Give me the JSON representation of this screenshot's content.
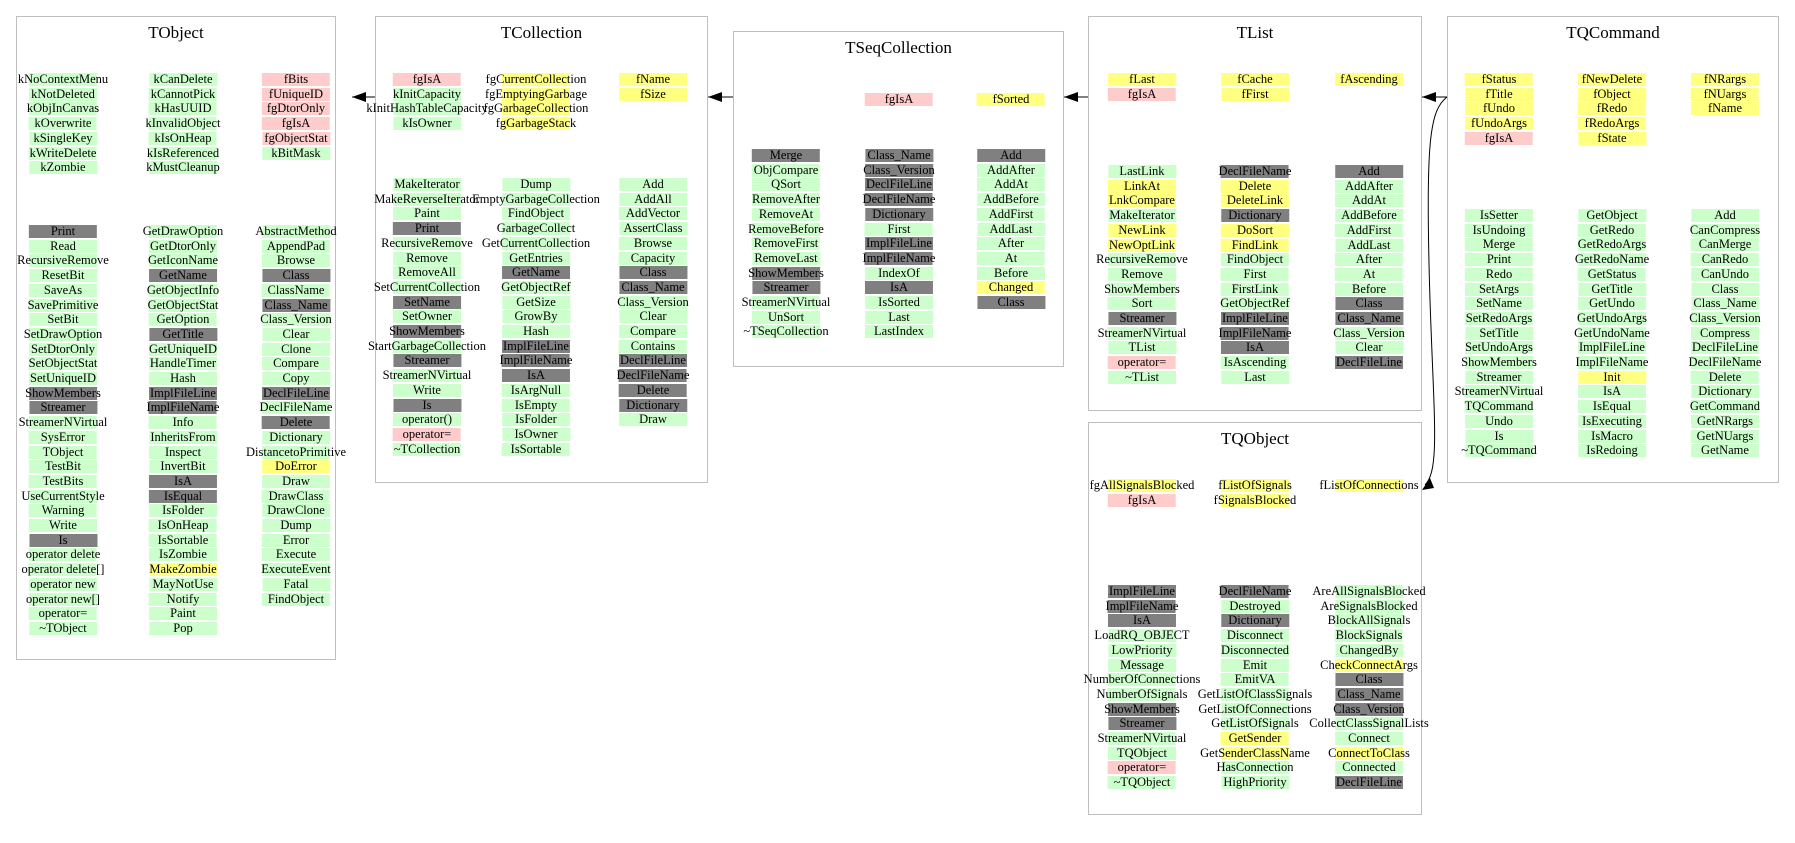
{
  "classes": [
    {
      "id": "tobject",
      "title": "TObject",
      "members": [
        [
          "kNoContextMenu",
          "kNotDeleted",
          "kObjInCanvas",
          "kOverwrite",
          "kSingleKey",
          "kWriteDelete",
          "kZombie"
        ],
        [
          "kCanDelete",
          "kCannotPick",
          "kHasUUID",
          "kInvalidObject",
          "kIsOnHeap",
          "kIsReferenced",
          "kMustCleanup"
        ],
        [
          "fBits",
          "fUniqueID",
          "fgDtorOnly",
          "fgIsA",
          "fgObjectStat",
          "kBitMask"
        ]
      ],
      "methods": [
        [
          "Print",
          "Read",
          "RecursiveRemove",
          "ResetBit",
          "SaveAs",
          "SavePrimitive",
          "SetBit",
          "SetDrawOption",
          "SetDtorOnly",
          "SetObjectStat",
          "SetUniqueID",
          "ShowMembers",
          "Streamer",
          "StreamerNVirtual",
          "SysError",
          "TObject",
          "TestBit",
          "TestBits",
          "UseCurrentStyle",
          "Warning",
          "Write",
          "Is",
          "operator delete",
          "operator delete[]",
          "operator new",
          "operator new[]",
          "operator=",
          "~TObject"
        ],
        [
          "GetDrawOption",
          "GetDtorOnly",
          "GetIconName",
          "GetName",
          "GetObjectInfo",
          "GetObjectStat",
          "GetOption",
          "GetTitle",
          "GetUniqueID",
          "HandleTimer",
          "Hash",
          "ImplFileLine",
          "ImplFileName",
          "Info",
          "InheritsFrom",
          "Inspect",
          "InvertBit",
          "IsA",
          "IsEqual",
          "IsFolder",
          "IsOnHeap",
          "IsSortable",
          "IsZombie",
          "MakeZombie",
          "MayNotUse",
          "Notify",
          "Paint",
          "Pop"
        ],
        [
          "AbstractMethod",
          "AppendPad",
          "Browse",
          "Class",
          "ClassName",
          "Class_Name",
          "Class_Version",
          "Clear",
          "Clone",
          "Compare",
          "Copy",
          "DeclFileLine",
          "DeclFileName",
          "Delete",
          "Dictionary",
          "DistancetoPrimitive",
          "DoError",
          "Draw",
          "DrawClass",
          "DrawClone",
          "Dump",
          "Error",
          "Execute",
          "ExecuteEvent",
          "Fatal",
          "FindObject"
        ]
      ]
    },
    {
      "id": "tcollection",
      "title": "TCollection",
      "members": [
        [
          "fgIsA",
          "kInitCapacity",
          "kInitHashTableCapacity",
          "kIsOwner"
        ],
        [
          "fgCurrentCollection",
          "fgEmptyingGarbage",
          "fgGarbageCollection",
          "fgGarbageStack"
        ],
        [
          "fName",
          "fSize"
        ]
      ],
      "methods": [
        [
          "MakeIterator",
          "MakeReverseIterator",
          "Paint",
          "Print",
          "RecursiveRemove",
          "Remove",
          "RemoveAll",
          "SetCurrentCollection",
          "SetName",
          "SetOwner",
          "ShowMembers",
          "StartGarbageCollection",
          "Streamer",
          "StreamerNVirtual",
          "Write",
          "Is",
          "operator()",
          "operator=",
          "~TCollection"
        ],
        [
          "Dump",
          "EmptyGarbageCollection",
          "FindObject",
          "GarbageCollect",
          "GetCurrentCollection",
          "GetEntries",
          "GetName",
          "GetObjectRef",
          "GetSize",
          "GrowBy",
          "Hash",
          "ImplFileLine",
          "ImplFileName",
          "IsA",
          "IsArgNull",
          "IsEmpty",
          "IsFolder",
          "IsOwner",
          "IsSortable"
        ],
        [
          "Add",
          "AddAll",
          "AddVector",
          "AssertClass",
          "Browse",
          "Capacity",
          "Class",
          "Class_Name",
          "Class_Version",
          "Clear",
          "Compare",
          "Contains",
          "DeclFileLine",
          "DeclFileName",
          "Delete",
          "Dictionary",
          "Draw"
        ]
      ]
    },
    {
      "id": "tseqcollection",
      "title": "TSeqCollection",
      "members": [
        [],
        [
          "fgIsA"
        ],
        [
          "fSorted"
        ]
      ],
      "methods": [
        [
          "Merge",
          "ObjCompare",
          "QSort",
          "RemoveAfter",
          "RemoveAt",
          "RemoveBefore",
          "RemoveFirst",
          "RemoveLast",
          "ShowMembers",
          "Streamer",
          "StreamerNVirtual",
          "UnSort",
          "~TSeqCollection"
        ],
        [
          "Class_Name",
          "Class_Version",
          "DeclFileLine",
          "DeclFileName",
          "Dictionary",
          "First",
          "ImplFileLine",
          "ImplFileName",
          "IndexOf",
          "IsA",
          "IsSorted",
          "Last",
          "LastIndex"
        ],
        [
          "Add",
          "AddAfter",
          "AddAt",
          "AddBefore",
          "AddFirst",
          "AddLast",
          "After",
          "At",
          "Before",
          "Changed",
          "Class"
        ]
      ]
    },
    {
      "id": "tlist",
      "title": "TList",
      "members": [
        [
          "fLast",
          "fgIsA"
        ],
        [
          "fCache",
          "fFirst"
        ],
        [
          "fAscending"
        ]
      ],
      "methods": [
        [
          "LastLink",
          "LinkAt",
          "LnkCompare",
          "MakeIterator",
          "NewLink",
          "NewOptLink",
          "RecursiveRemove",
          "Remove",
          "ShowMembers",
          "Sort",
          "Streamer",
          "StreamerNVirtual",
          "TList",
          "operator=",
          "~TList"
        ],
        [
          "DeclFileName",
          "Delete",
          "DeleteLink",
          "Dictionary",
          "DoSort",
          "FindLink",
          "FindObject",
          "First",
          "FirstLink",
          "GetObjectRef",
          "ImplFileLine",
          "ImplFileName",
          "IsA",
          "IsAscending",
          "Last"
        ],
        [
          "Add",
          "AddAfter",
          "AddAt",
          "AddBefore",
          "AddFirst",
          "AddLast",
          "After",
          "At",
          "Before",
          "Class",
          "Class_Name",
          "Class_Version",
          "Clear",
          "DeclFileLine"
        ]
      ]
    },
    {
      "id": "tqcommand",
      "title": "TQCommand",
      "members": [
        [
          "fStatus",
          "fTitle",
          "fUndo",
          "fUndoArgs",
          "fgIsA"
        ],
        [
          "fNewDelete",
          "fObject",
          "fRedo",
          "fRedoArgs",
          "fState"
        ],
        [
          "fNRargs",
          "fNUargs",
          "fName"
        ]
      ],
      "methods": [
        [
          "IsSetter",
          "IsUndoing",
          "Merge",
          "Print",
          "Redo",
          "SetArgs",
          "SetName",
          "SetRedoArgs",
          "SetTitle",
          "SetUndoArgs",
          "ShowMembers",
          "Streamer",
          "StreamerNVirtual",
          "TQCommand",
          "Undo",
          "Is",
          "~TQCommand"
        ],
        [
          "GetObject",
          "GetRedo",
          "GetRedoArgs",
          "GetRedoName",
          "GetStatus",
          "GetTitle",
          "GetUndo",
          "GetUndoArgs",
          "GetUndoName",
          "ImplFileLine",
          "ImplFileName",
          "Init",
          "IsA",
          "IsEqual",
          "IsExecuting",
          "IsMacro",
          "IsRedoing"
        ],
        [
          "Add",
          "CanCompress",
          "CanMerge",
          "CanRedo",
          "CanUndo",
          "Class",
          "Class_Name",
          "Class_Version",
          "Compress",
          "DeclFileLine",
          "DeclFileName",
          "Delete",
          "Dictionary",
          "GetCommand",
          "GetNRargs",
          "GetNUargs",
          "GetName"
        ]
      ]
    },
    {
      "id": "tqobject",
      "title": "TQObject",
      "members": [
        [
          "fgAllSignalsBlocked",
          "fgIsA"
        ],
        [
          "fListOfSignals",
          "fSignalsBlocked"
        ],
        [
          "fListOfConnections"
        ]
      ],
      "methods": [
        [
          "ImplFileLine",
          "ImplFileName",
          "IsA",
          "LoadRQ_OBJECT",
          "LowPriority",
          "Message",
          "NumberOfConnections",
          "NumberOfSignals",
          "ShowMembers",
          "Streamer",
          "StreamerNVirtual",
          "TQObject",
          "operator=",
          "~TQObject"
        ],
        [
          "DeclFileName",
          "Destroyed",
          "Dictionary",
          "Disconnect",
          "Disconnected",
          "Emit",
          "EmitVA",
          "GetListOfClassSignals",
          "GetListOfConnections",
          "GetListOfSignals",
          "GetSender",
          "GetSenderClassName",
          "HasConnection",
          "HighPriority"
        ],
        [
          "AreAllSignalsBlocked",
          "AreSignalsBlocked",
          "BlockAllSignals",
          "BlockSignals",
          "ChangedBy",
          "CheckConnectArgs",
          "Class",
          "Class_Name",
          "Class_Version",
          "CollectClassSignalLists",
          "Connect",
          "ConnectToClass",
          "Connected",
          "DeclFileLine"
        ]
      ]
    }
  ],
  "colors": {
    "public": "#ccffcc",
    "protected": "#ffff80",
    "private": "#ffcccc",
    "inherited": "#808080",
    "border": "#bfbfbf"
  }
}
